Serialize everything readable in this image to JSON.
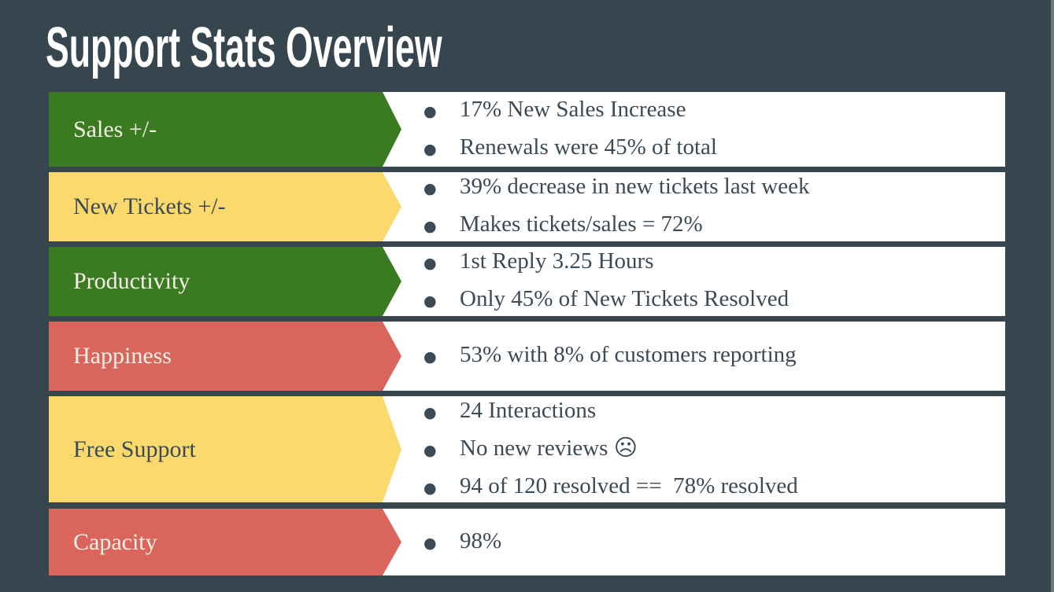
{
  "slide": {
    "title": "Support Stats Overview",
    "colors": {
      "background": "#36454e",
      "green": "#3a7a20",
      "yellow": "#fbd96d",
      "red": "#d9655c",
      "panel": "#ffffff",
      "text_dark": "#3b4a54",
      "label_light": "#f5f2e9",
      "right_edge": "#6d7a81"
    },
    "rows": [
      {
        "label": "Sales +/-",
        "color": "green",
        "label_style": "light",
        "bullets": [
          "17% New Sales Increase",
          "Renewals were 45% of total"
        ]
      },
      {
        "label": "New Tickets +/-",
        "color": "yellow",
        "label_style": "dark",
        "bullets": [
          "39% decrease in new tickets last week",
          "Makes tickets/sales = 72%"
        ]
      },
      {
        "label": "Productivity",
        "color": "green",
        "label_style": "light",
        "bullets": [
          "1st Reply 3.25 Hours",
          "Only 45% of New Tickets Resolved"
        ]
      },
      {
        "label": "Happiness",
        "color": "red",
        "label_style": "light",
        "bullets": [
          "53% with 8% of customers reporting"
        ]
      },
      {
        "label": "Free Support",
        "color": "yellow",
        "label_style": "dark",
        "bullets": [
          "24 Interactions",
          "No new reviews ☹",
          "94 of 120 resolved ==  78% resolved"
        ]
      },
      {
        "label": "Capacity",
        "color": "red",
        "label_style": "light",
        "bullets": [
          "98%"
        ]
      }
    ],
    "bullet_icon": "●"
  }
}
